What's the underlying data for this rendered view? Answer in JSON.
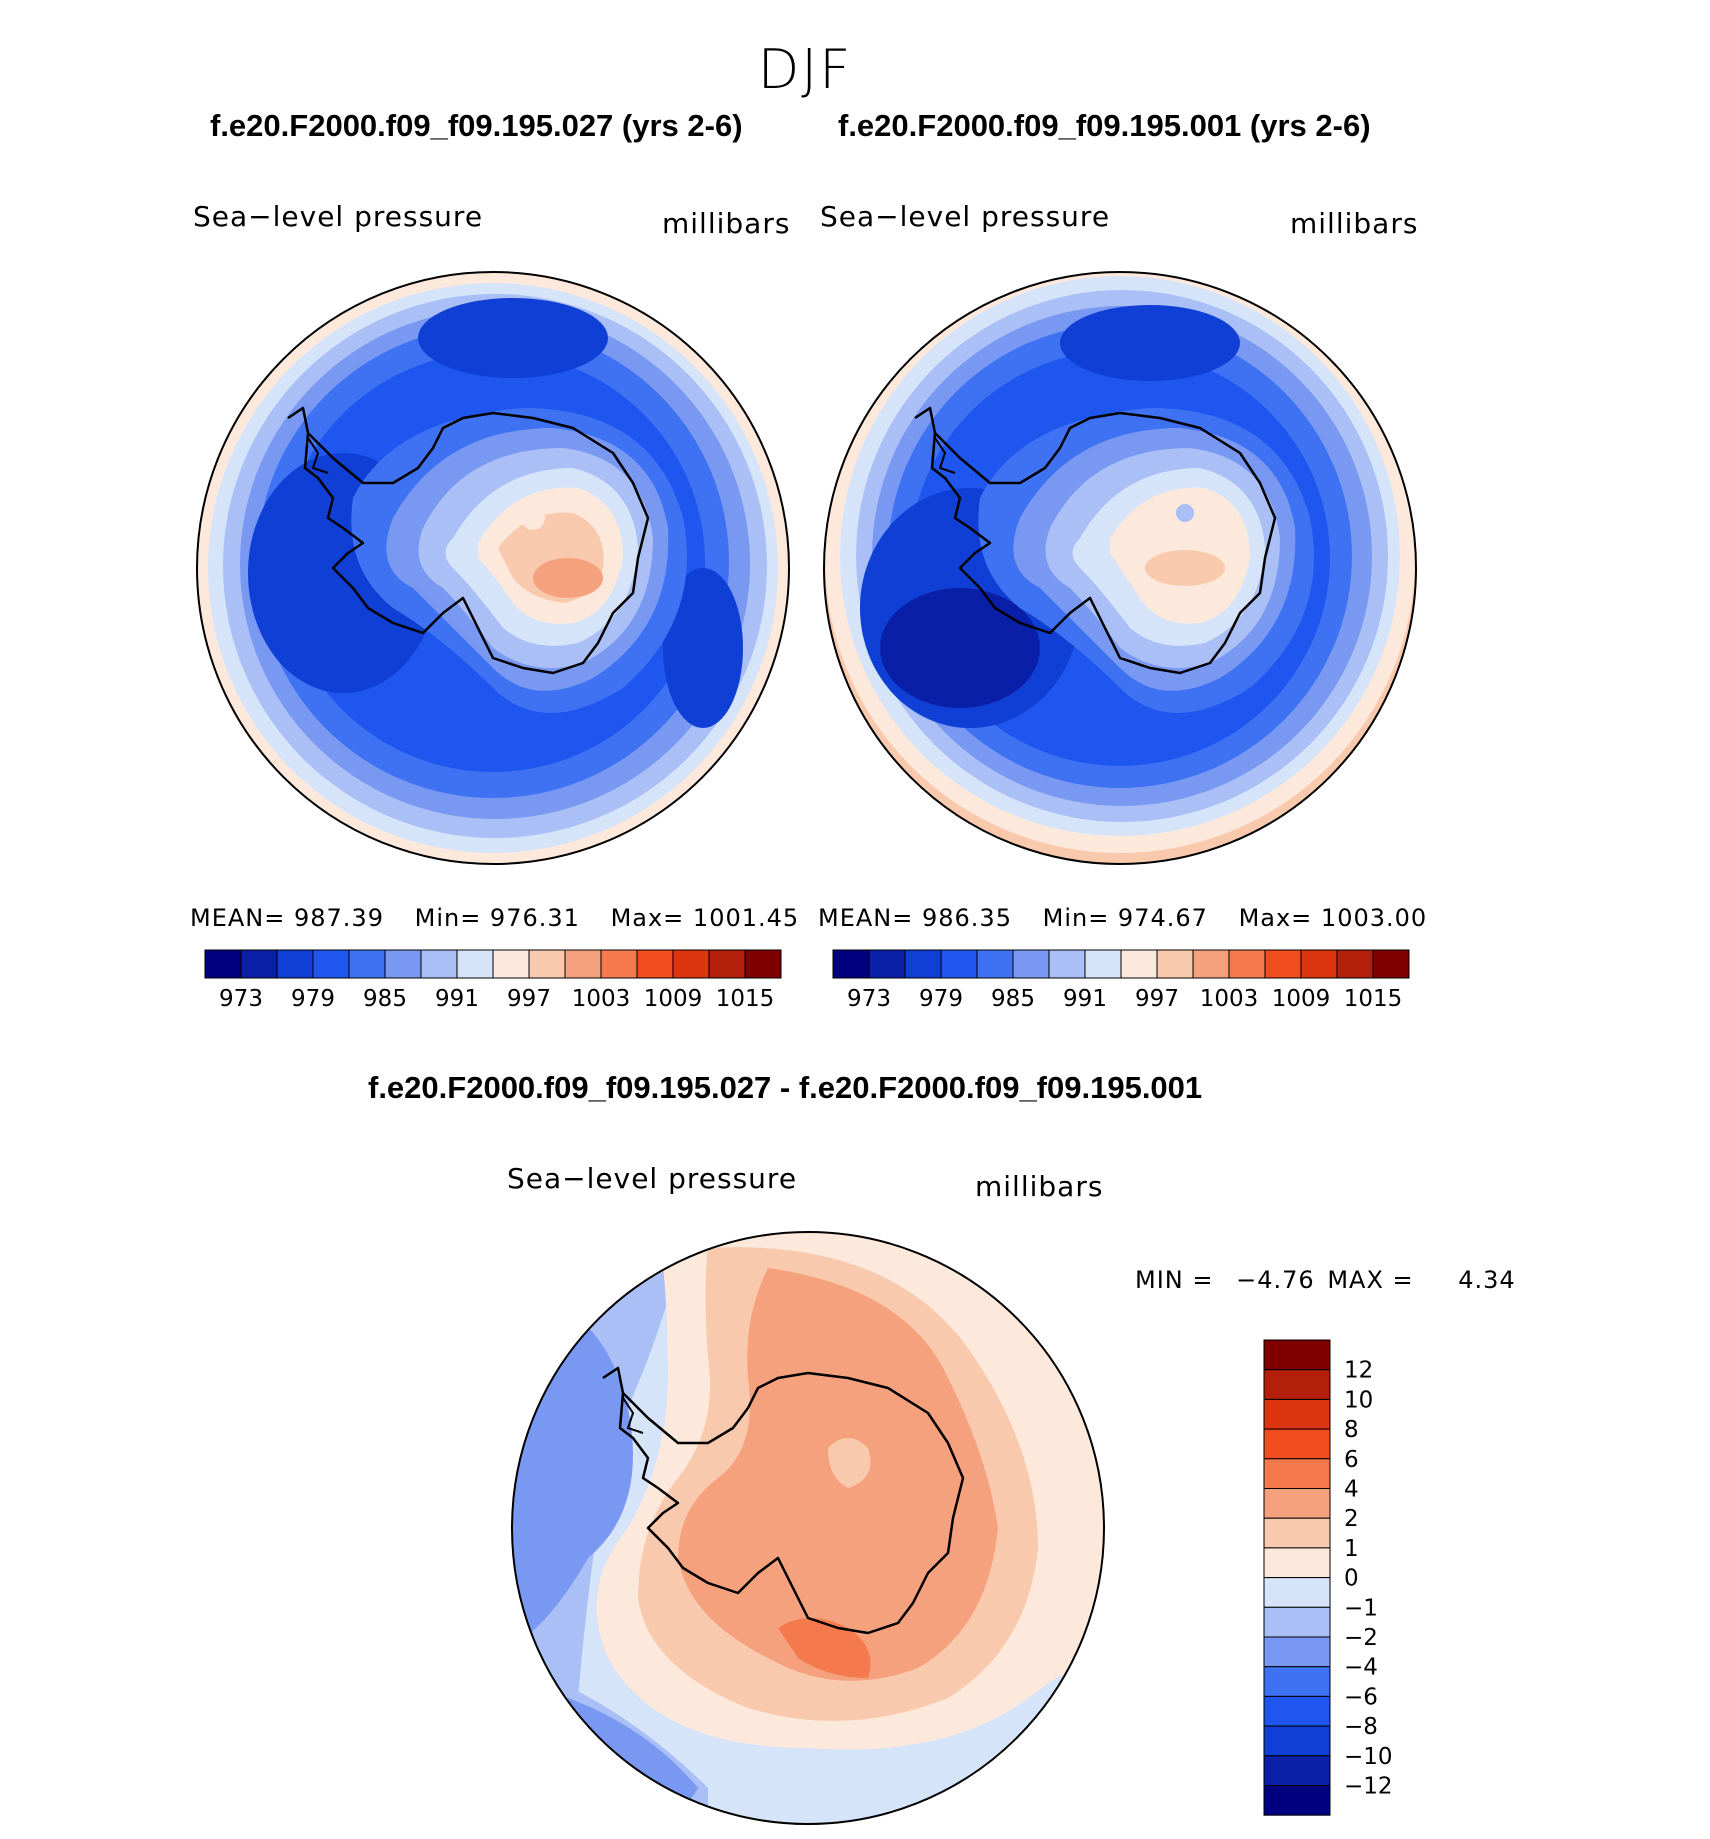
{
  "figure": {
    "season_title": "DJF",
    "diff_title": "f.e20.F2000.f09_f09.195.027 - f.e20.F2000.f09_f09.195.001"
  },
  "panels": [
    {
      "case_title": "f.e20.F2000.f09_f09.195.027 (yrs 2-6)",
      "variable": "Sea−level pressure",
      "units": "millibars",
      "mean_text": "MEAN= 987.39",
      "min_text": "Min= 976.31",
      "max_text": "Max= 1001.45"
    },
    {
      "case_title": "f.e20.F2000.f09_f09.195.001 (yrs 2-6)",
      "variable": "Sea−level pressure",
      "units": "millibars",
      "mean_text": "MEAN= 986.35",
      "min_text": "Min= 974.67",
      "max_text": "Max= 1003.00"
    }
  ],
  "diff_panel": {
    "variable": "Sea−level pressure",
    "units": "millibars",
    "min_label": "MIN =",
    "min_value": "−4.76",
    "max_label": "MAX =",
    "max_value": "4.34"
  },
  "chart_data": [
    {
      "type": "heatmap",
      "projection": "south polar stereographic",
      "title": "f.e20.F2000.f09_f09.195.027 (yrs 2-6)",
      "variable": "Sea-level pressure",
      "units": "millibars",
      "mean": 987.39,
      "min": 976.31,
      "max": 1001.45,
      "levels": [
        973,
        976,
        979,
        982,
        985,
        988,
        991,
        994,
        997,
        1000,
        1003,
        1006,
        1009,
        1012,
        1015
      ],
      "tick_labels": [
        "973",
        "979",
        "985",
        "991",
        "997",
        "1003",
        "1009",
        "1015"
      ]
    },
    {
      "type": "heatmap",
      "projection": "south polar stereographic",
      "title": "f.e20.F2000.f09_f09.195.001 (yrs 2-6)",
      "variable": "Sea-level pressure",
      "units": "millibars",
      "mean": 986.35,
      "min": 974.67,
      "max": 1003.0,
      "levels": [
        973,
        976,
        979,
        982,
        985,
        988,
        991,
        994,
        997,
        1000,
        1003,
        1006,
        1009,
        1012,
        1015
      ],
      "tick_labels": [
        "973",
        "979",
        "985",
        "991",
        "997",
        "1003",
        "1009",
        "1015"
      ]
    },
    {
      "type": "heatmap",
      "projection": "south polar stereographic",
      "title": "f.e20.F2000.f09_f09.195.027 - f.e20.F2000.f09_f09.195.001",
      "variable": "Sea-level pressure",
      "units": "millibars",
      "min": -4.76,
      "max": 4.34,
      "levels": [
        12,
        10,
        8,
        6,
        4,
        2,
        1,
        0,
        -1,
        -2,
        -4,
        -6,
        -8,
        -10,
        -12
      ],
      "tick_labels": [
        "12",
        "10",
        "8",
        "6",
        "4",
        "2",
        "1",
        "0",
        "−1",
        "−2",
        "−4",
        "−6",
        "−8",
        "−10",
        "−12"
      ]
    }
  ],
  "colors": {
    "abs_scale": [
      "#00007f",
      "#0a1fa8",
      "#0f3fd4",
      "#1f56f0",
      "#3f72f2",
      "#7898f2",
      "#a9bff5",
      "#d6e4f9",
      "#fde8dc",
      "#f9c9ad",
      "#f6a17e",
      "#f47a4e",
      "#f24d1e",
      "#dc3510",
      "#b2200c",
      "#7f0000"
    ],
    "diff_scale": [
      "#7f0000",
      "#b2200c",
      "#dc3510",
      "#f24d1e",
      "#f47a4e",
      "#f6a17e",
      "#f9c9ad",
      "#fde8dc",
      "#d6e4f9",
      "#a9bff5",
      "#7898f2",
      "#3f72f2",
      "#1f56f0",
      "#0f3fd4",
      "#0a1fa8",
      "#00007f"
    ]
  }
}
